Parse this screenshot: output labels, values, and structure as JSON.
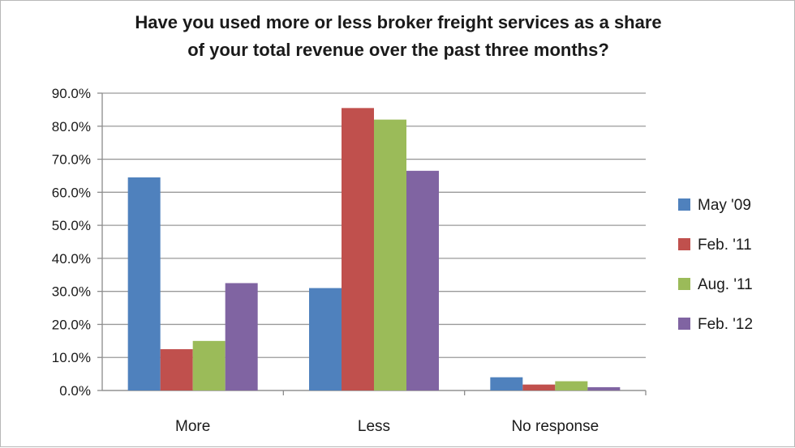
{
  "chart_data": {
    "type": "bar",
    "title_lines": [
      "Have you used more or less broker freight services as a share",
      "of your total revenue over the past three months?"
    ],
    "categories": [
      "More",
      "Less",
      "No response"
    ],
    "series": [
      {
        "name": "May '09",
        "color": "#4f81bd",
        "values": [
          64.5,
          31.0,
          4.0
        ]
      },
      {
        "name": "Feb. '11",
        "color": "#c0504d",
        "values": [
          12.5,
          85.5,
          1.8
        ]
      },
      {
        "name": "Aug. '11",
        "color": "#9bbb59",
        "values": [
          15.0,
          82.0,
          2.8
        ]
      },
      {
        "name": "Feb. '12",
        "color": "#8064a2",
        "values": [
          32.5,
          66.5,
          1.0
        ]
      }
    ],
    "ylim": [
      0,
      90
    ],
    "yticks": [
      "0.0%",
      "10.0%",
      "20.0%",
      "30.0%",
      "40.0%",
      "50.0%",
      "60.0%",
      "70.0%",
      "80.0%",
      "90.0%"
    ],
    "grid": true,
    "legend_position": "right"
  }
}
